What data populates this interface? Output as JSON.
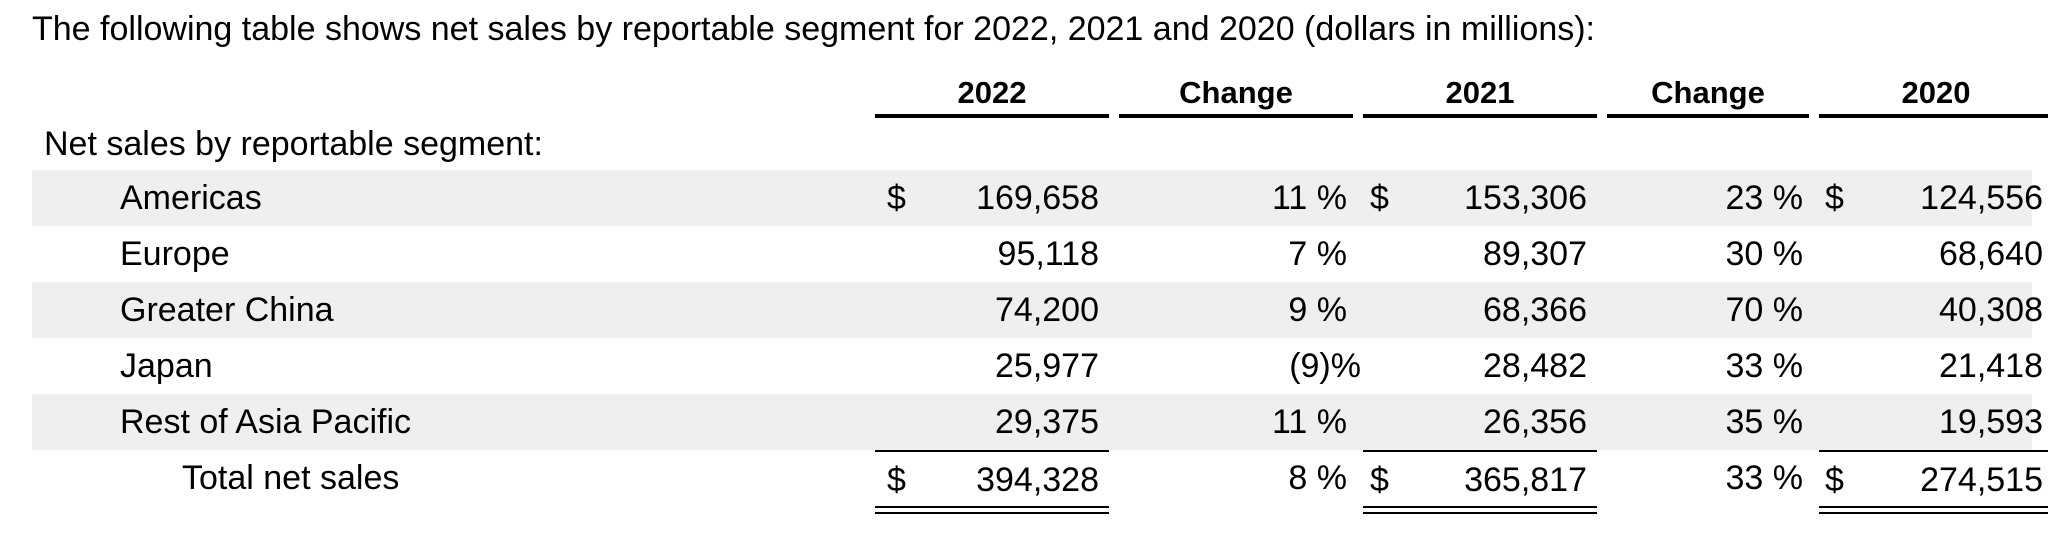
{
  "intro": "The following table shows net sales by reportable segment for 2022, 2021 and 2020 (dollars in millions):",
  "columns": [
    "2022",
    "Change",
    "2021",
    "Change",
    "2020"
  ],
  "section_label": "Net sales by reportable segment:",
  "rows": [
    {
      "label": "Americas",
      "y2022": "169,658",
      "chg2022": "11 %",
      "y2021": "153,306",
      "chg2021": "23 %",
      "y2020": "124,556",
      "d2022": "$",
      "d2021": "$",
      "d2020": "$"
    },
    {
      "label": "Europe",
      "y2022": "95,118",
      "chg2022": "7 %",
      "y2021": "89,307",
      "chg2021": "30 %",
      "y2020": "68,640"
    },
    {
      "label": "Greater China",
      "y2022": "74,200",
      "chg2022": "9 %",
      "y2021": "68,366",
      "chg2021": "70 %",
      "y2020": "40,308"
    },
    {
      "label": "Japan",
      "y2022": "25,977",
      "chg2022": "(9)%",
      "y2021": "28,482",
      "chg2021": "33 %",
      "y2020": "21,418"
    },
    {
      "label": "Rest of Asia Pacific",
      "y2022": "29,375",
      "chg2022": "11 %",
      "y2021": "26,356",
      "chg2021": "35 %",
      "y2020": "19,593"
    }
  ],
  "total": {
    "label": "Total net sales",
    "d2022": "$",
    "y2022": "394,328",
    "chg2022": "8 %",
    "d2021": "$",
    "y2021": "365,817",
    "chg2021": "33 %",
    "d2020": "$",
    "y2020": "274,515"
  }
}
